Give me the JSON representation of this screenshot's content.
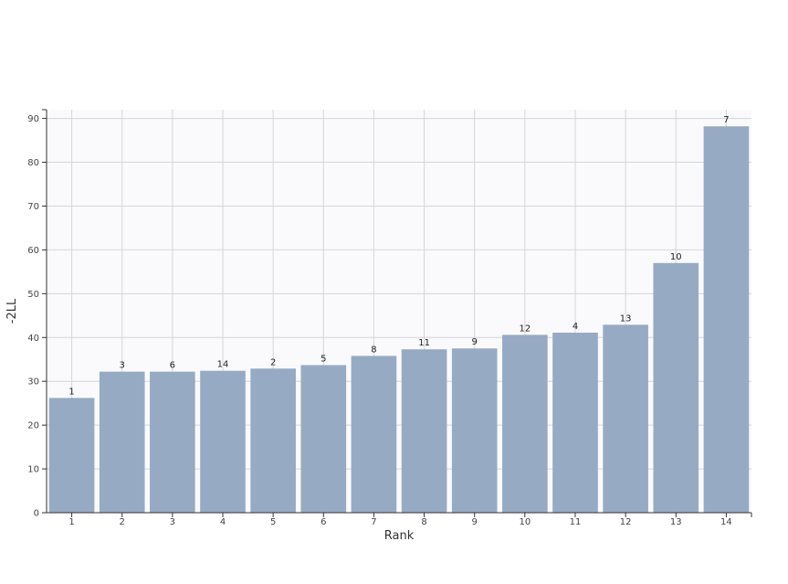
{
  "chart_data": {
    "type": "bar",
    "xlabel": "Rank",
    "ylabel": "-2LL",
    "ylim": [
      0,
      92
    ],
    "yticks": [
      0,
      10,
      20,
      30,
      40,
      50,
      60,
      70,
      80,
      90
    ],
    "grid": true,
    "categories": [
      "1",
      "2",
      "3",
      "4",
      "5",
      "6",
      "7",
      "8",
      "9",
      "10",
      "11",
      "12",
      "13",
      "14"
    ],
    "series": [
      {
        "values": [
          26.2,
          32.2,
          32.2,
          32.4,
          32.9,
          33.7,
          35.8,
          37.3,
          37.5,
          40.6,
          41.1,
          42.9,
          57.0,
          88.2
        ],
        "labels": [
          "1",
          "3",
          "6",
          "14",
          "2",
          "5",
          "8",
          "11",
          "9",
          "12",
          "4",
          "13",
          "10",
          "7"
        ]
      }
    ],
    "colors": {
      "bar": "#97aac4",
      "plot_background": "#fafafd",
      "grid": "#d4d4dc",
      "axis": "#333333"
    }
  }
}
